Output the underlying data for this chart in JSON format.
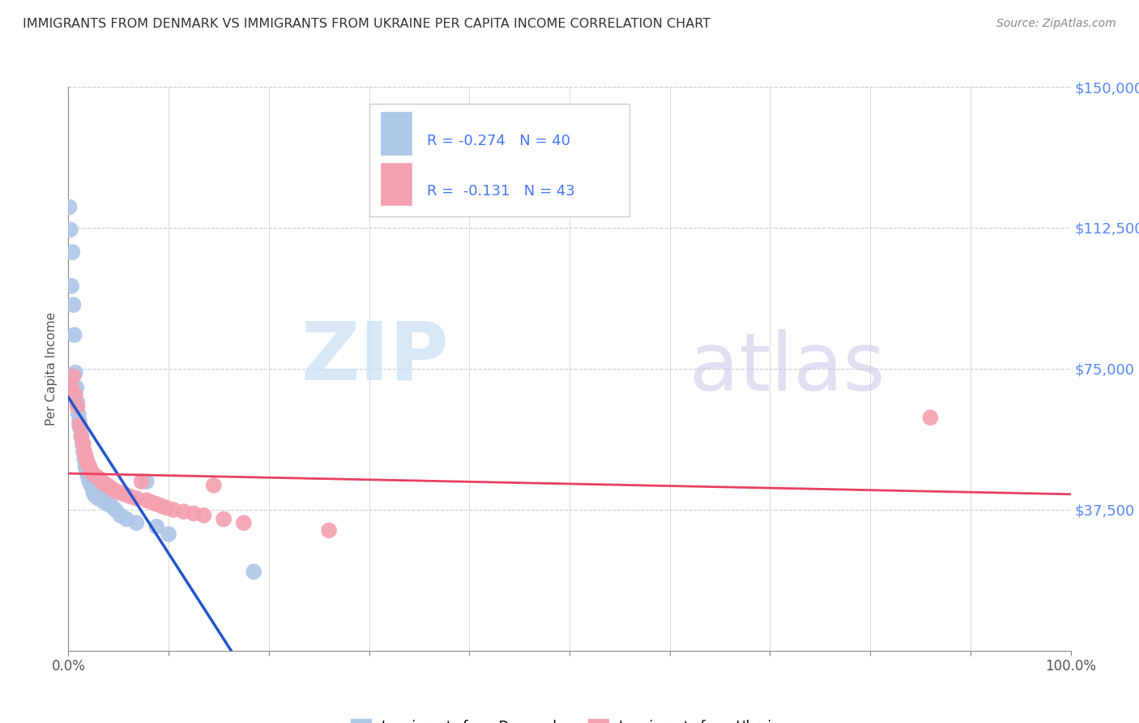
{
  "title": "IMMIGRANTS FROM DENMARK VS IMMIGRANTS FROM UKRAINE PER CAPITA INCOME CORRELATION CHART",
  "source": "Source: ZipAtlas.com",
  "ylabel": "Per Capita Income",
  "xlim": [
    0,
    1.0
  ],
  "ylim": [
    0,
    150000
  ],
  "yticks": [
    37500,
    75000,
    112500,
    150000
  ],
  "ytick_labels": [
    "$37,500",
    "$75,000",
    "$112,500",
    "$150,000"
  ],
  "xtick_labels": [
    "0.0%",
    "100.0%"
  ],
  "background_color": "#ffffff",
  "grid_color": "#cccccc",
  "denmark_color": "#aec6e8",
  "ukraine_color": "#f4a0b0",
  "denmark_line_color": "#2255cc",
  "ukraine_line_color": "#e84060",
  "denmark_label": "Immigrants from Denmark",
  "ukraine_label": "Immigrants from Ukraine",
  "denmark_R": "-0.274",
  "denmark_N": "40",
  "ukraine_R": "-0.131",
  "ukraine_N": "43",
  "watermark_zip": "ZIP",
  "watermark_atlas": "atlas",
  "denmark_x": [
    0.001,
    0.002,
    0.003,
    0.004,
    0.005,
    0.006,
    0.007,
    0.008,
    0.009,
    0.01,
    0.011,
    0.012,
    0.013,
    0.014,
    0.015,
    0.016,
    0.017,
    0.018,
    0.019,
    0.02,
    0.021,
    0.022,
    0.023,
    0.024,
    0.025,
    0.026,
    0.028,
    0.03,
    0.033,
    0.036,
    0.04,
    0.043,
    0.047,
    0.052,
    0.058,
    0.068,
    0.078,
    0.088,
    0.1,
    0.185
  ],
  "denmark_y": [
    118000,
    112000,
    97000,
    106000,
    92000,
    84000,
    74000,
    70000,
    66000,
    63000,
    61000,
    59000,
    57000,
    55000,
    53000,
    51000,
    49000,
    48000,
    47000,
    46000,
    45000,
    44500,
    44000,
    43500,
    42000,
    41500,
    41000,
    40500,
    43000,
    39500,
    39000,
    38500,
    37500,
    36000,
    35000,
    34000,
    45000,
    33000,
    31000,
    21000
  ],
  "ukraine_x": [
    0.003,
    0.005,
    0.007,
    0.009,
    0.011,
    0.013,
    0.015,
    0.016,
    0.017,
    0.018,
    0.019,
    0.02,
    0.021,
    0.022,
    0.023,
    0.025,
    0.027,
    0.03,
    0.033,
    0.036,
    0.039,
    0.041,
    0.044,
    0.047,
    0.052,
    0.057,
    0.062,
    0.068,
    0.073,
    0.078,
    0.083,
    0.088,
    0.093,
    0.098,
    0.105,
    0.115,
    0.125,
    0.135,
    0.145,
    0.155,
    0.175,
    0.26,
    0.86
  ],
  "ukraine_y": [
    70000,
    73000,
    68000,
    65000,
    60000,
    57000,
    55000,
    53000,
    52000,
    51000,
    50000,
    49500,
    49000,
    48000,
    47500,
    47000,
    46500,
    46000,
    45000,
    44500,
    44000,
    43500,
    43000,
    42500,
    42000,
    41500,
    41000,
    40500,
    45000,
    40000,
    39500,
    39000,
    38500,
    38000,
    37500,
    37000,
    36500,
    36000,
    44000,
    35000,
    34000,
    32000,
    62000
  ]
}
